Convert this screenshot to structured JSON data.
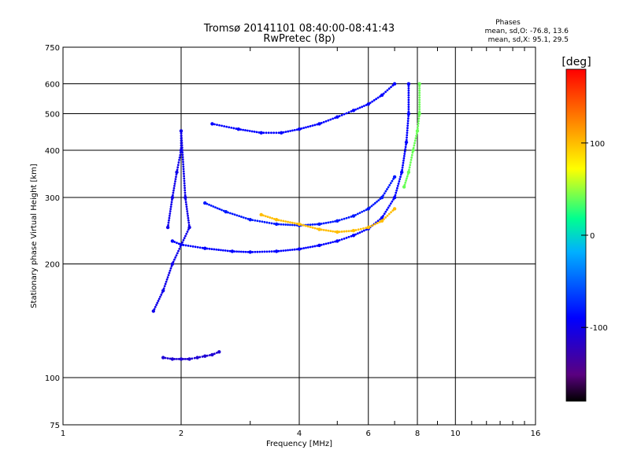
{
  "header": {
    "title": "Tromsø 20141101 08:40:00-08:41:43",
    "subtitle": "RwPretec (8p)"
  },
  "stats": {
    "heading": "Phases",
    "line_o": "mean, sd,O: -76.8, 13.6",
    "line_x": "mean, sd,X:  95.1, 29.5"
  },
  "chart_data": {
    "type": "scatter",
    "title": "Tromsø 20141101 08:40:00-08:41:43",
    "subtitle": "RwPretec (8p)",
    "xlabel": "Frequency [MHz]",
    "ylabel": "Stationary phase Virtual Height [km]",
    "x_scale": "log",
    "y_scale": "log",
    "xlim": [
      1,
      16
    ],
    "ylim": [
      75,
      750
    ],
    "x_ticks": [
      1,
      2,
      4,
      6,
      8,
      10,
      16
    ],
    "x_tick_labels": [
      "1",
      "2",
      "4",
      "6",
      "8",
      "10",
      "16"
    ],
    "y_ticks": [
      75,
      100,
      200,
      300,
      400,
      500,
      600,
      750
    ],
    "y_tick_labels": [
      "75",
      "100",
      "200",
      "300",
      "400",
      "500",
      "600",
      "750"
    ],
    "grid": true,
    "colorbar": {
      "label": "[deg]",
      "range": [
        -180,
        180
      ],
      "ticks": [
        100,
        0,
        -100
      ],
      "tick_labels": [
        "100",
        "0",
        "-100"
      ],
      "colors": [
        "#000000",
        "#5a0080",
        "#0000ff",
        "#00b0ff",
        "#00ff90",
        "#ffff00",
        "#ff8000",
        "#ff0000"
      ]
    },
    "series": [
      {
        "trace": "E-layer trace",
        "color_deg": -110,
        "points": [
          [
            1.8,
            113
          ],
          [
            1.9,
            112
          ],
          [
            2.0,
            112
          ],
          [
            2.1,
            112
          ],
          [
            2.2,
            113
          ],
          [
            2.3,
            114
          ],
          [
            2.4,
            115
          ],
          [
            2.5,
            117
          ]
        ]
      },
      {
        "trace": "F-layer O-mode lower branch",
        "color_deg": -90,
        "points": [
          [
            1.9,
            230
          ],
          [
            2.0,
            225
          ],
          [
            2.3,
            220
          ],
          [
            2.7,
            216
          ],
          [
            3.0,
            215
          ],
          [
            3.5,
            216
          ],
          [
            4.0,
            219
          ],
          [
            4.5,
            224
          ],
          [
            5.0,
            230
          ],
          [
            5.5,
            238
          ],
          [
            6.0,
            248
          ],
          [
            6.5,
            265
          ],
          [
            7.0,
            300
          ],
          [
            7.3,
            350
          ],
          [
            7.5,
            420
          ],
          [
            7.6,
            500
          ],
          [
            7.6,
            600
          ]
        ]
      },
      {
        "trace": "F-layer O-mode upper branch",
        "color_deg": -80,
        "points": [
          [
            2.3,
            290
          ],
          [
            2.6,
            275
          ],
          [
            3.0,
            262
          ],
          [
            3.5,
            255
          ],
          [
            4.0,
            253
          ],
          [
            4.5,
            255
          ],
          [
            5.0,
            260
          ],
          [
            5.5,
            268
          ],
          [
            6.0,
            280
          ],
          [
            6.5,
            300
          ],
          [
            7.0,
            340
          ]
        ]
      },
      {
        "trace": "F-layer X-mode trace",
        "color_deg": 100,
        "points": [
          [
            3.2,
            270
          ],
          [
            3.5,
            262
          ],
          [
            4.0,
            255
          ],
          [
            4.5,
            247
          ],
          [
            5.0,
            243
          ],
          [
            5.5,
            245
          ],
          [
            6.0,
            250
          ],
          [
            6.5,
            260
          ],
          [
            7.0,
            280
          ]
        ]
      },
      {
        "trace": "X-mode cusp",
        "color_deg": 40,
        "points": [
          [
            7.4,
            320
          ],
          [
            7.6,
            350
          ],
          [
            7.8,
            400
          ],
          [
            8.0,
            450
          ],
          [
            8.1,
            500
          ],
          [
            8.1,
            600
          ]
        ]
      },
      {
        "trace": "Spread F",
        "color_deg": -100,
        "points": [
          [
            1.85,
            250
          ],
          [
            1.9,
            300
          ],
          [
            1.95,
            350
          ],
          [
            2.0,
            400
          ],
          [
            2.0,
            450
          ],
          [
            2.05,
            300
          ],
          [
            2.1,
            250
          ],
          [
            1.9,
            200
          ],
          [
            1.8,
            170
          ],
          [
            1.7,
            150
          ]
        ]
      },
      {
        "trace": "Upper stratification",
        "color_deg": -90,
        "points": [
          [
            2.4,
            470
          ],
          [
            2.8,
            455
          ],
          [
            3.2,
            445
          ],
          [
            3.6,
            445
          ],
          [
            4.0,
            455
          ],
          [
            4.5,
            470
          ],
          [
            5.0,
            490
          ],
          [
            5.5,
            510
          ],
          [
            6.0,
            530
          ],
          [
            6.5,
            560
          ],
          [
            7.0,
            600
          ]
        ]
      }
    ]
  }
}
